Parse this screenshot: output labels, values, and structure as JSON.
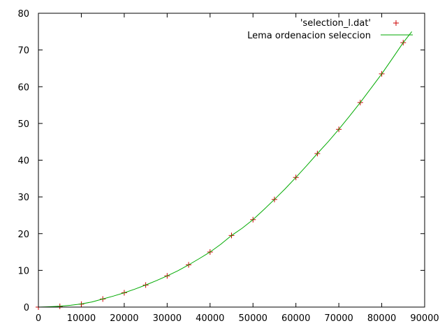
{
  "chart_data": {
    "type": "scatter",
    "title": "",
    "xlabel": "",
    "ylabel": "",
    "xlim": [
      0,
      90000
    ],
    "ylim": [
      0,
      80
    ],
    "xticks": [
      0,
      10000,
      20000,
      30000,
      40000,
      50000,
      60000,
      70000,
      80000,
      90000
    ],
    "yticks": [
      0,
      10,
      20,
      30,
      40,
      50,
      60,
      70,
      80
    ],
    "grid": false,
    "legend_position": "top-right",
    "series": [
      {
        "name": "'selection_l.dat'",
        "kind": "points",
        "marker": "plus",
        "color": "#cc0000",
        "points": [
          [
            0,
            0.0
          ],
          [
            5000,
            0.2
          ],
          [
            10000,
            0.8
          ],
          [
            15000,
            2.2
          ],
          [
            20000,
            3.9
          ],
          [
            25000,
            6.0
          ],
          [
            30000,
            8.5
          ],
          [
            35000,
            11.5
          ],
          [
            40000,
            15.0
          ],
          [
            45000,
            19.5
          ],
          [
            50000,
            23.8
          ],
          [
            55000,
            29.3
          ],
          [
            60000,
            35.3
          ],
          [
            65000,
            41.8
          ],
          [
            70000,
            48.4
          ],
          [
            75000,
            55.7
          ],
          [
            80000,
            63.5
          ],
          [
            85000,
            72.0
          ]
        ]
      },
      {
        "name": "Lema ordenacion seleccion",
        "kind": "line",
        "color": "#00aa00",
        "points": [
          [
            0,
            0.0
          ],
          [
            2500,
            0.1
          ],
          [
            5000,
            0.25
          ],
          [
            7500,
            0.5
          ],
          [
            10000,
            0.85
          ],
          [
            12500,
            1.4
          ],
          [
            15000,
            2.2
          ],
          [
            17500,
            3.0
          ],
          [
            20000,
            3.9
          ],
          [
            22500,
            4.9
          ],
          [
            25000,
            6.0
          ],
          [
            27500,
            7.2
          ],
          [
            30000,
            8.5
          ],
          [
            32500,
            9.9
          ],
          [
            35000,
            11.5
          ],
          [
            37500,
            13.2
          ],
          [
            40000,
            15.0
          ],
          [
            42500,
            17.1
          ],
          [
            45000,
            19.5
          ],
          [
            47500,
            21.5
          ],
          [
            50000,
            23.8
          ],
          [
            52500,
            26.5
          ],
          [
            55000,
            29.3
          ],
          [
            57500,
            32.2
          ],
          [
            60000,
            35.3
          ],
          [
            62500,
            38.5
          ],
          [
            65000,
            41.8
          ],
          [
            67500,
            45.0
          ],
          [
            70000,
            48.4
          ],
          [
            72500,
            52.0
          ],
          [
            75000,
            55.7
          ],
          [
            77500,
            59.6
          ],
          [
            80000,
            63.5
          ],
          [
            82500,
            67.7
          ],
          [
            85000,
            72.0
          ],
          [
            87000,
            75.0
          ]
        ]
      }
    ]
  }
}
